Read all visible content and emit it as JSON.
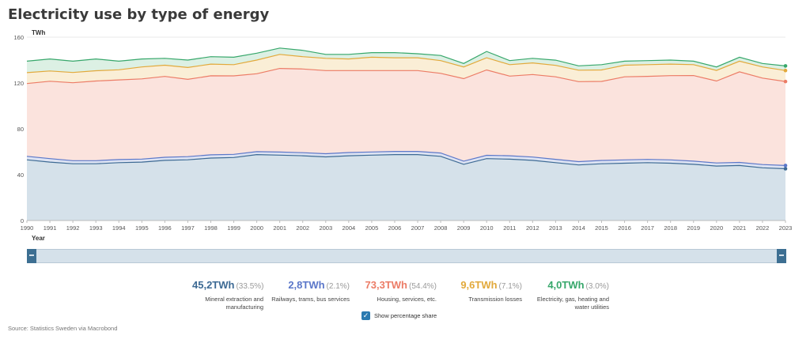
{
  "title": "Electricity use by type of energy",
  "source": "Source: Statistics Sweden via Macrobond",
  "toggle_label": "Show percentage share",
  "toggle_checked": true,
  "legend": [
    {
      "value": "45,2TWh",
      "pct": "(33.5%)",
      "label": "Mineral extraction and manufacturing",
      "color": "#3d6a94"
    },
    {
      "value": "2,8TWh",
      "pct": "(2.1%)",
      "label": "Railways, trams, bus services",
      "color": "#5b77c9"
    },
    {
      "value": "73,3TWh",
      "pct": "(54.4%)",
      "label": "Housing, services, etc.",
      "color": "#ec7c66"
    },
    {
      "value": "9,6TWh",
      "pct": "(7.1%)",
      "label": "Transmission losses",
      "color": "#e2a93b"
    },
    {
      "value": "4,0TWh",
      "pct": "(3.0%)",
      "label": "Electricity, gas, heating and water utilities",
      "color": "#37a76b"
    }
  ],
  "chart_data": {
    "type": "area",
    "stacked": true,
    "title": "Electricity use by type of energy",
    "ylabel": "TWh",
    "xlabel": "Year",
    "ylim": [
      0,
      160
    ],
    "yticks": [
      0,
      40,
      80,
      120,
      160
    ],
    "grid": true,
    "legend_position": "bottom",
    "x": [
      1990,
      1991,
      1992,
      1993,
      1994,
      1995,
      1996,
      1997,
      1998,
      1999,
      2000,
      2001,
      2002,
      2003,
      2004,
      2005,
      2006,
      2007,
      2008,
      2009,
      2010,
      2011,
      2012,
      2013,
      2014,
      2015,
      2016,
      2017,
      2018,
      2019,
      2020,
      2021,
      2022,
      2023
    ],
    "series": [
      {
        "name": "Mineral extraction and manufacturing",
        "color": "#3d6a94",
        "fill": "#d5e1ea",
        "values": [
          53,
          51,
          49.5,
          49.5,
          50.5,
          51,
          52.5,
          53,
          54.5,
          55,
          57.5,
          57,
          56.5,
          55.5,
          56.5,
          57,
          57.5,
          57.5,
          56,
          49,
          54,
          53.5,
          52.5,
          50.5,
          48.5,
          49.5,
          50,
          50.5,
          50,
          49,
          47.5,
          48,
          46,
          45.2
        ]
      },
      {
        "name": "Railways, trams, bus services",
        "color": "#5b77c9",
        "fill": "#dde3f3",
        "values": [
          3,
          3,
          2.7,
          2.7,
          2.7,
          2.6,
          2.7,
          2.7,
          2.8,
          2.7,
          2.6,
          2.7,
          2.7,
          2.8,
          2.8,
          2.8,
          2.8,
          2.8,
          2.9,
          2.8,
          2.9,
          3,
          2.9,
          2.9,
          2.9,
          2.9,
          2.9,
          2.8,
          2.9,
          2.8,
          2.7,
          2.7,
          2.8,
          2.8
        ]
      },
      {
        "name": "Housing, services, etc.",
        "color": "#ec7c66",
        "fill": "#fbe3dd",
        "values": [
          63.5,
          67.5,
          68,
          69.5,
          69.5,
          70,
          70.5,
          67.5,
          69,
          68.5,
          68,
          73,
          73,
          72.5,
          71.5,
          71,
          70.5,
          70.5,
          69.5,
          72,
          74.5,
          69.5,
          72,
          72,
          69.8,
          69,
          72.5,
          72.5,
          73.5,
          74.7,
          71.5,
          79,
          75.5,
          73.3
        ]
      },
      {
        "name": "Transmission losses",
        "color": "#e2a93b",
        "fill": "#faeed6",
        "values": [
          9.5,
          9,
          9,
          9,
          8.8,
          10.4,
          9.8,
          10.3,
          10.2,
          9.8,
          11.9,
          12.3,
          10.8,
          10.7,
          10.2,
          11.7,
          11.2,
          11.2,
          11.1,
          10.2,
          10.6,
          10,
          10.1,
          10,
          10,
          10,
          10.1,
          10.2,
          10.1,
          9.5,
          9.3,
          9.3,
          9.7,
          9.6
        ]
      },
      {
        "name": "Electricity, gas, heating and water utilities",
        "color": "#37a76b",
        "fill": "#dcf0e4",
        "values": [
          10,
          10.5,
          9.8,
          10.3,
          7.5,
          7,
          6,
          6.5,
          6.5,
          6.5,
          6,
          5.5,
          5.5,
          3.5,
          4,
          4,
          4.5,
          3.5,
          4.5,
          3,
          5.5,
          3.5,
          4,
          4.5,
          3.8,
          4.6,
          3.5,
          3.5,
          3.5,
          3,
          3,
          3.5,
          3,
          4
        ]
      }
    ]
  }
}
